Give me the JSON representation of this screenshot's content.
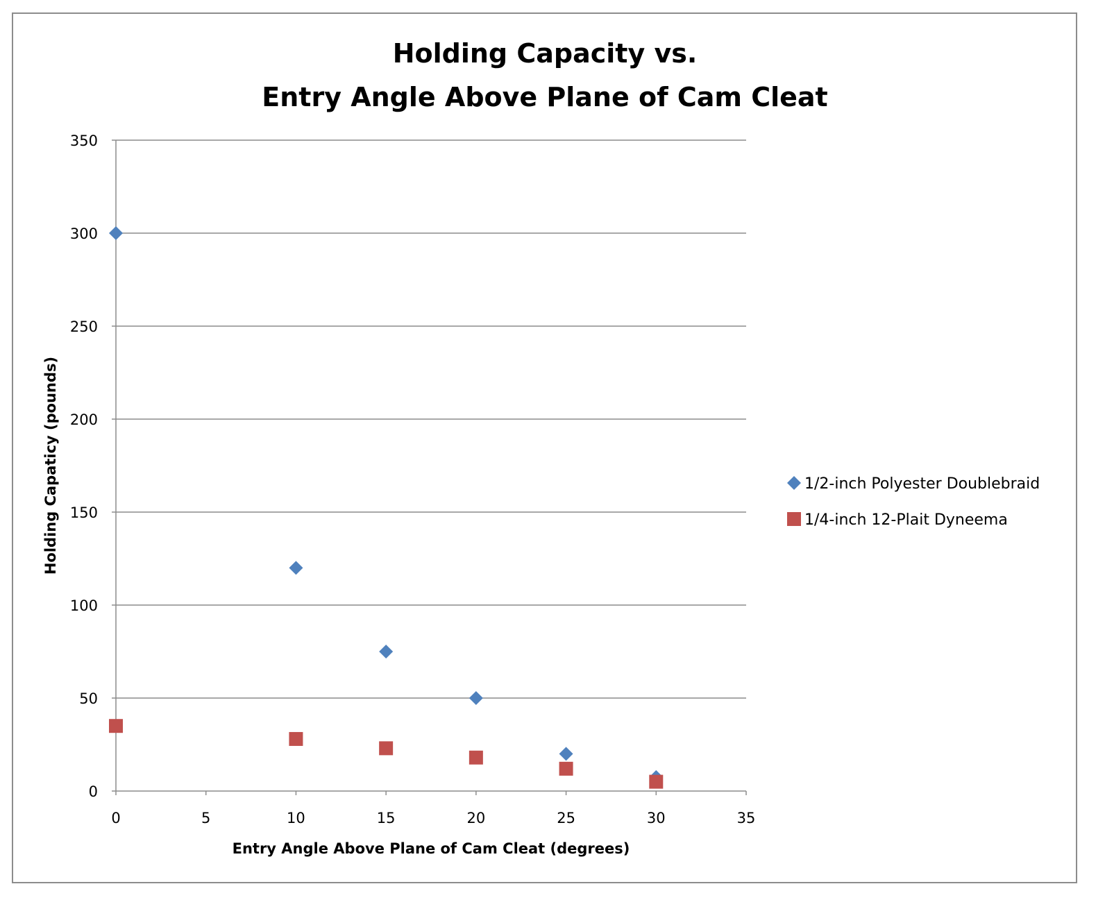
{
  "chart_data": {
    "type": "scatter",
    "title": [
      "Holding Capacity vs.",
      "Entry Angle Above Plane of Cam Cleat"
    ],
    "xlabel": "Entry Angle Above Plane of Cam Cleat (degrees)",
    "ylabel": "Holding Capaticy (pounds)",
    "xlim": [
      0,
      35
    ],
    "ylim": [
      0,
      350
    ],
    "xticks": [
      0,
      5,
      10,
      15,
      20,
      25,
      30,
      35
    ],
    "yticks": [
      0,
      50,
      100,
      150,
      200,
      250,
      300,
      350
    ],
    "grid": "horizontal major gridlines",
    "legend": "right",
    "series": [
      {
        "name": "1/2-inch Polyester Doublebraid",
        "marker": "diamond",
        "color": "#4F81BD",
        "x": [
          0,
          10,
          15,
          20,
          25,
          30
        ],
        "y": [
          300,
          120,
          75,
          50,
          20,
          7.5
        ]
      },
      {
        "name": "1/4-inch 12-Plait Dyneema",
        "marker": "square",
        "color": "#C0504D",
        "x": [
          0,
          10,
          15,
          20,
          25,
          30
        ],
        "y": [
          35,
          28,
          23,
          18,
          12,
          5
        ]
      }
    ]
  }
}
